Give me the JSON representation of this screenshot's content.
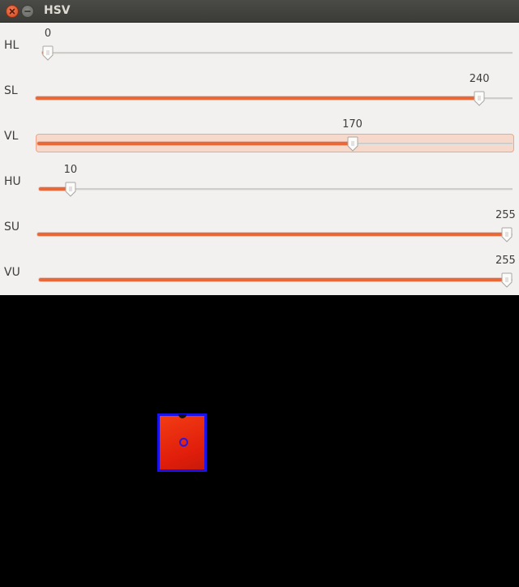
{
  "window": {
    "title": "HSV",
    "close_icon": "close-icon",
    "minimize_icon": "minimize-icon"
  },
  "colors": {
    "fill": "#e9683a",
    "track": "#cfcdca",
    "blob": "#e01d0b",
    "outline": "#1a12e8"
  },
  "sliders": [
    {
      "label": "HL",
      "value": "0",
      "fraction": 0.0
    },
    {
      "label": "SL",
      "value": "240",
      "fraction": 0.941
    },
    {
      "label": "VL",
      "value": "170",
      "fraction": 0.667
    },
    {
      "label": "HU",
      "value": "10",
      "fraction": 0.056
    },
    {
      "label": "SU",
      "value": "255",
      "fraction": 1.0
    },
    {
      "label": "VU",
      "value": "255",
      "fraction": 1.0
    }
  ]
}
